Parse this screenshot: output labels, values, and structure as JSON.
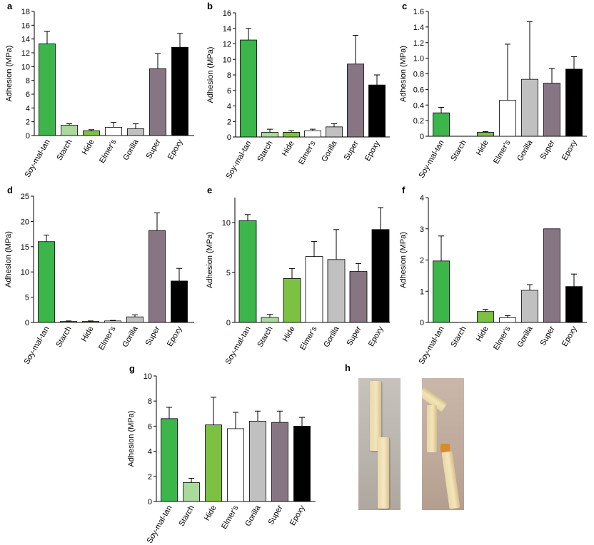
{
  "colors": {
    "Soy-mal-tan": "#3cb54a",
    "Starch": "#a9d99b",
    "Hide": "#7dc142",
    "Elmer's": "#ffffff",
    "Gorilla": "#c0c0c0",
    "Super": "#877583",
    "Epoxy": "#000000"
  },
  "chart_data": [
    {
      "panel": "a",
      "type": "bar",
      "ylabel": "Adhesion (MPa)",
      "ylim": [
        0,
        18
      ],
      "yticks": [
        0,
        2,
        4,
        6,
        8,
        10,
        12,
        14,
        16,
        18
      ],
      "categories": [
        "Soy-mal-tan",
        "Starch",
        "Hide",
        "Elmer's",
        "Gorilla",
        "Super",
        "Epoxy"
      ],
      "values": [
        13.3,
        1.5,
        0.7,
        1.2,
        1.0,
        9.7,
        12.8
      ],
      "errors": [
        1.8,
        0.2,
        0.15,
        0.7,
        0.7,
        2.2,
        2.0
      ]
    },
    {
      "panel": "b",
      "type": "bar",
      "ylabel": "Adhesion (MPa)",
      "ylim": [
        0,
        16
      ],
      "yticks": [
        0,
        2,
        4,
        6,
        8,
        10,
        12,
        14,
        16
      ],
      "categories": [
        "Soy-mal-tan",
        "Starch",
        "Hide",
        "Elmer's",
        "Gorilla",
        "Super",
        "Epoxy"
      ],
      "values": [
        12.5,
        0.6,
        0.6,
        0.8,
        1.3,
        9.4,
        6.7
      ],
      "errors": [
        1.5,
        0.4,
        0.2,
        0.2,
        0.4,
        3.7,
        1.3
      ]
    },
    {
      "panel": "c",
      "type": "bar",
      "ylabel": "Adhesion (MPa)",
      "ylim": [
        0,
        1.6
      ],
      "yticks": [
        "0",
        "0.2",
        "0.4",
        "0.6",
        "0.8",
        "1.0",
        "1.2",
        "1.4",
        "1.6"
      ],
      "categories": [
        "Soy-mal-tan",
        "Starch",
        "Hide",
        "Elmer's",
        "Gorilla",
        "Super",
        "Epoxy"
      ],
      "values": [
        0.3,
        0,
        0.05,
        0.46,
        0.73,
        0.68,
        0.86
      ],
      "errors": [
        0.07,
        0,
        0.01,
        0.72,
        0.74,
        0.19,
        0.16
      ]
    },
    {
      "panel": "d",
      "type": "bar",
      "ylabel": "Adhesion (MPa)",
      "ylim": [
        0,
        25
      ],
      "yticks": [
        0,
        5,
        10,
        15,
        20,
        25
      ],
      "categories": [
        "Soy-mal-tan",
        "Starch",
        "Hide",
        "Elmer's",
        "Gorilla",
        "Super",
        "Epoxy"
      ],
      "values": [
        16.0,
        0.2,
        0.2,
        0.3,
        1.1,
        18.2,
        8.2
      ],
      "errors": [
        1.3,
        0.1,
        0.1,
        0.1,
        0.4,
        3.5,
        2.5
      ]
    },
    {
      "panel": "e",
      "type": "bar",
      "ylabel": "Adhesion (MPa)",
      "ylim": [
        0,
        12.5
      ],
      "yticks": [
        0,
        5,
        10
      ],
      "categories": [
        "Soy-mal-tan",
        "Starch",
        "Hide",
        "Elmer's",
        "Gorilla",
        "Super",
        "Epoxy"
      ],
      "values": [
        10.2,
        0.5,
        4.4,
        6.6,
        6.3,
        5.1,
        9.3
      ],
      "errors": [
        0.6,
        0.3,
        1.0,
        1.5,
        3.0,
        0.8,
        2.2
      ]
    },
    {
      "panel": "f",
      "type": "bar",
      "ylabel": "Adhesion (MPa)",
      "ylim": [
        0,
        4
      ],
      "yticks": [
        0,
        1,
        2,
        3,
        4
      ],
      "categories": [
        "Soy-mal-tan",
        "Starch",
        "Hide",
        "Elmer's",
        "Gorilla",
        "Super",
        "Epoxy"
      ],
      "values": [
        1.97,
        0,
        0.35,
        0.15,
        1.03,
        3.0,
        1.15
      ],
      "errors": [
        0.8,
        0,
        0.07,
        0.07,
        0.18,
        0,
        0.4
      ]
    },
    {
      "panel": "g",
      "type": "bar",
      "ylabel": "Adhesion (MPa)",
      "ylim": [
        0,
        10
      ],
      "yticks": [
        0,
        2,
        4,
        6,
        8,
        10
      ],
      "categories": [
        "Soy-mal-tan",
        "Starch",
        "Hide",
        "Elmer's",
        "Gorilla",
        "Super",
        "Epoxy"
      ],
      "values": [
        6.6,
        1.5,
        6.1,
        5.8,
        6.4,
        6.3,
        6.0
      ],
      "errors": [
        0.9,
        0.35,
        2.2,
        1.3,
        0.8,
        0.9,
        0.7
      ]
    }
  ],
  "photo_panel": {
    "label": "h"
  }
}
